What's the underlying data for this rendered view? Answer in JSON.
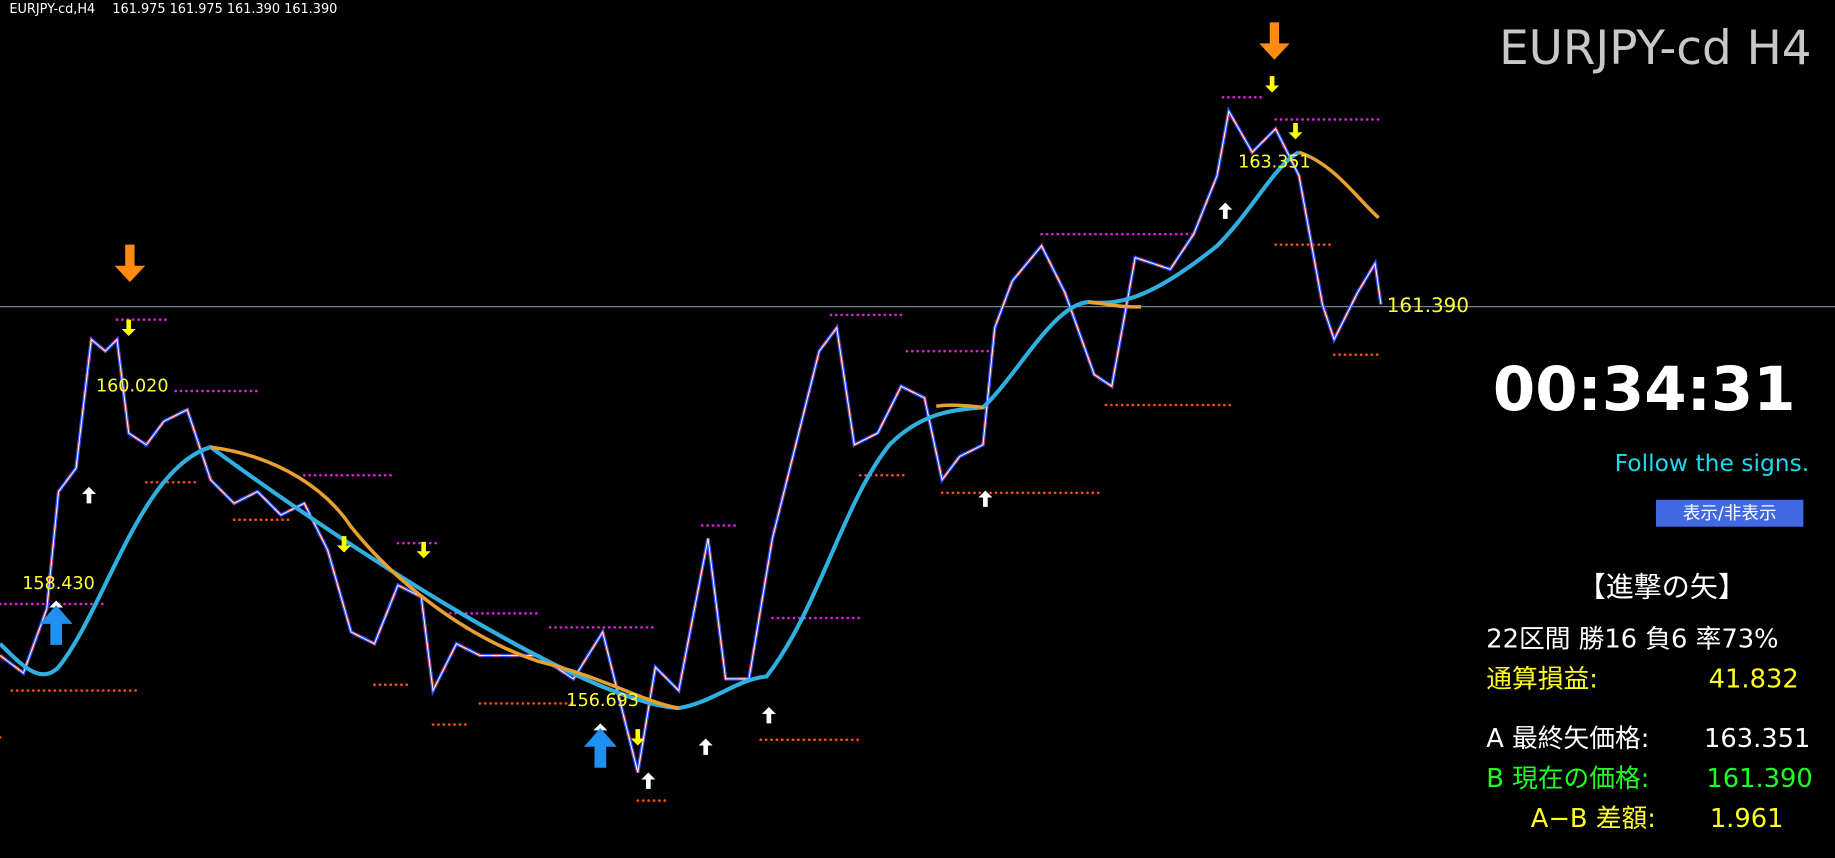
{
  "header": {
    "symbol": "EURJPY-cd,H4",
    "ohlc": "161.975 161.975 161.390 161.390"
  },
  "watermark": "EURJPY-cd H4",
  "price_labels": [
    "160.020",
    "158.430",
    "156.693",
    "163.351"
  ],
  "current_price": "161.390",
  "panel": {
    "timer": "00:34:31",
    "hint": "Follow the signs.",
    "toggle_button": "表示/非表示",
    "title": "【進撃の矢】",
    "summary": "22区間 勝16 負6 率73%",
    "total_label": "通算損益:",
    "total_value": "41.832",
    "a_label": "A 最終矢価格:",
    "a_value": "163.351",
    "b_label": "B 現在の価格:",
    "b_value": "161.390",
    "diff_label": "A−B 差額:",
    "diff_value": "1.961"
  }
}
